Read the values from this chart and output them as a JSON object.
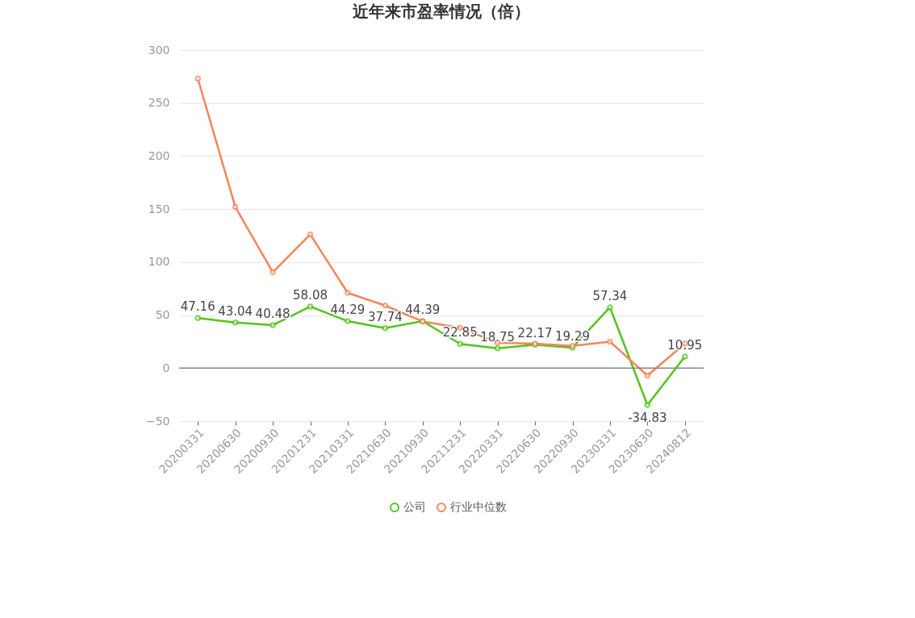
{
  "chart_data": {
    "type": "line",
    "title": "近年来市盈率情况（倍）",
    "categories": [
      "20200331",
      "20200630",
      "20200930",
      "20201231",
      "20210331",
      "20210630",
      "20210930",
      "20211231",
      "20220331",
      "20220630",
      "20220930",
      "20230331",
      "20230630",
      "20240812"
    ],
    "series": [
      {
        "name": "公司",
        "color": "#52c41a",
        "values": [
          47.16,
          43.04,
          40.48,
          58.08,
          44.29,
          37.74,
          44.39,
          22.85,
          18.75,
          22.17,
          19.29,
          57.34,
          -34.83,
          10.95
        ],
        "value_labels": [
          "47.16",
          "43.04",
          "40.48",
          "58.08",
          "44.29",
          "37.74",
          "44.39",
          "22.85",
          "18.75",
          "22.17",
          "19.29",
          "57.34",
          "-34.83",
          "10.95"
        ]
      },
      {
        "name": "行业中位数",
        "color": "#f5855a",
        "values": [
          273,
          152,
          90.5,
          126,
          71,
          59,
          44,
          38,
          24,
          23,
          21,
          25,
          -7,
          23
        ]
      }
    ],
    "ylim": [
      -50,
      300
    ],
    "yticks": [
      -50,
      0,
      50,
      100,
      150,
      200,
      250,
      300
    ],
    "grid": "y",
    "legend": "bottom",
    "marker": "circle",
    "line_style": "solid"
  }
}
